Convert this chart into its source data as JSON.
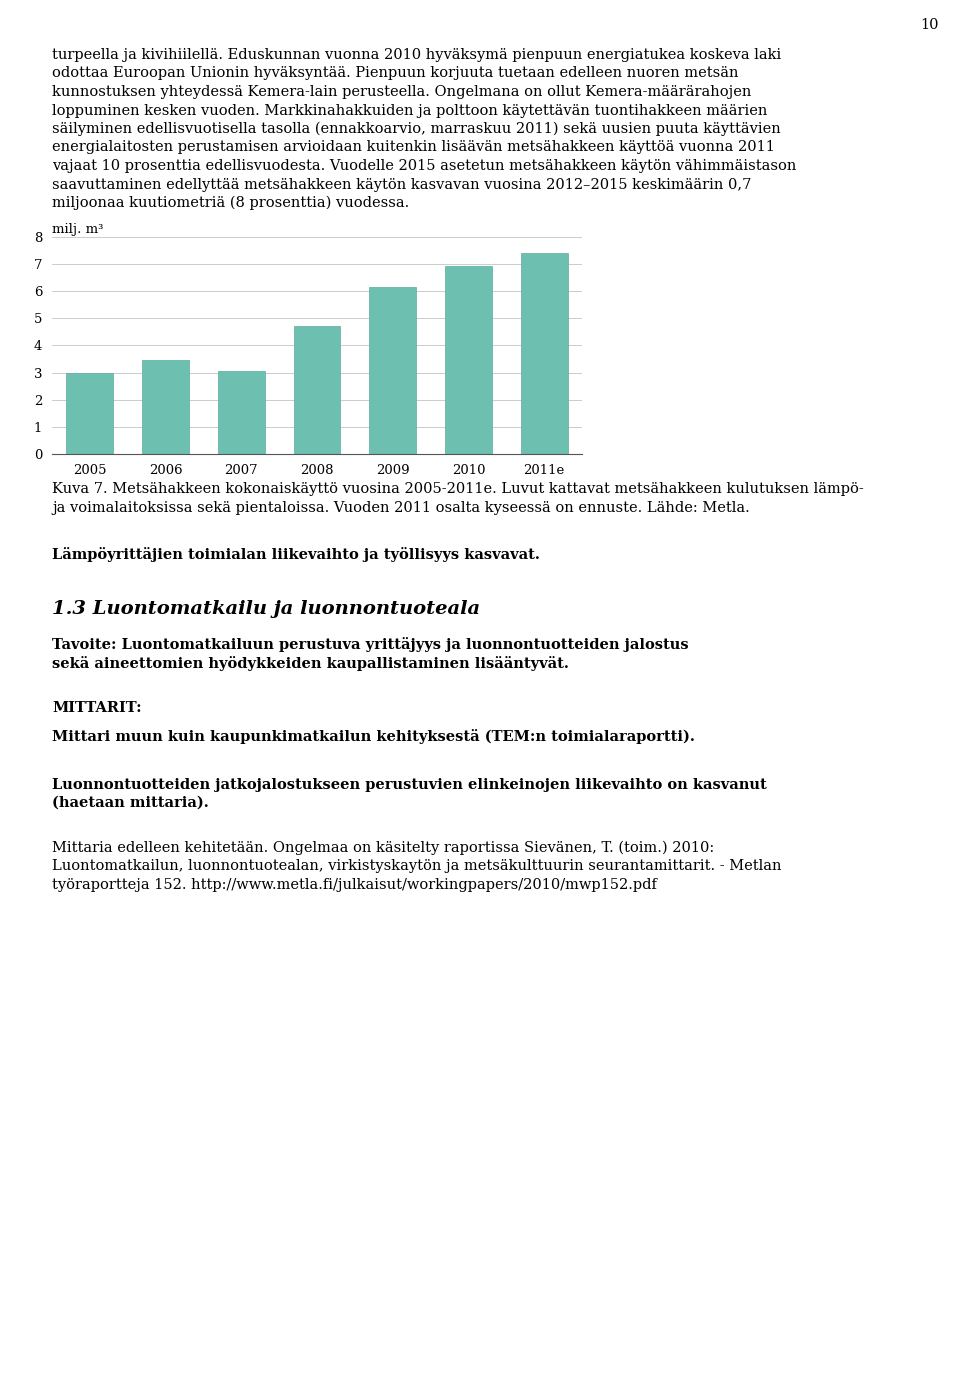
{
  "page_number": "10",
  "bar_years": [
    "2005",
    "2006",
    "2007",
    "2008",
    "2009",
    "2010",
    "2011e"
  ],
  "bar_values": [
    3.0,
    3.45,
    3.05,
    4.7,
    6.15,
    6.9,
    7.4
  ],
  "bar_color": "#6dbfb0",
  "bar_edge_color": "#5aada0",
  "ylabel": "milj. m³",
  "yticks": [
    0,
    1,
    2,
    3,
    4,
    5,
    6,
    7,
    8
  ],
  "ylim": [
    0,
    8
  ],
  "background_color": "#ffffff",
  "grid_color": "#cccccc",
  "text_color": "#000000",
  "para1_lines": [
    "turpeella ja kivihiilellä. Eduskunnan vuonna 2010 hyväksymä pienpuun energiatukea koskeva laki",
    "odottaa Euroopan Unionin hyväksyntää. Pienpuun korjuuta tuetaan edelleen nuoren metsän",
    "kunnostuksen yhteydessä Kemera-lain perusteella. Ongelmana on ollut Kemera-määrärahojen",
    "loppuminen kesken vuoden. Markkinahakkuiden ja polttoon käytettävän tuontihakkeen määrien",
    "säilyminen edellisvuotisella tasolla (ennakkoarvio, marraskuu 2011) sekä uusien puuta käyttävien",
    "energialaitosten perustamisen arvioidaan kuitenkin lisäävän metsähakkeen käyttöä vuonna 2011",
    "vajaat 10 prosenttia edellisvuodesta. Vuodelle 2015 asetetun metsähakkeen käytön vähimmäistason",
    "saavuttaminen edellyttää metsähakkeen käytön kasvavan vuosina 2012–2015 keskimäärin 0,7",
    "miljoonaa kuutiometriä (8 prosenttia) vuodessa."
  ],
  "caption_lines": [
    "Kuva 7. Metsähakkeen kokonaiskäyttö vuosina 2005-2011e. Luvut kattavat metsähakkeen kulutuksen lämpö-",
    "ja voimalaitoksissa sekä pientaloissa. Vuoden 2011 osalta kyseessä on ennuste. Lähde: Metla."
  ],
  "section_bold": "Lämpöyrittäjien toimialan liikevaihto ja työllisyys kasvavat.",
  "section_heading": "1.3 Luontomatkailu ja luonnontuoteala",
  "tavoite_lines": [
    "Tavoite: Luontomatkailuun perustuva yrittäjyys ja luonnontuotteiden jalostus",
    "sekä aineettomien hyödykkeiden kaupallistaminen lisääntyvät."
  ],
  "mittarit_bold": "MITTARIT:",
  "mittari_text_bold": "Mittari muun kuin kaupunkimatkailun kehityksestä (TEM:n toimialaraportti).",
  "luonnon_lines": [
    "Luonnontuotteiden jatkojalostukseen perustuvien elinkeinojen liikevaihto on kasvanut",
    "(haetaan mittaria)."
  ],
  "mittaria_lines": [
    "Mittaria edelleen kehitetään. Ongelmaa on käsitelty raportissa Sievänen, T. (toim.) 2010:",
    "Luontomatkailun, luonnontuotealan, virkistyskaytön ja metsäkulttuurin seurantamittarit. - Metlan",
    "työraportteja 152. http://www.metla.fi/julkaisut/workingpapers/2010/mwp152.pdf"
  ]
}
